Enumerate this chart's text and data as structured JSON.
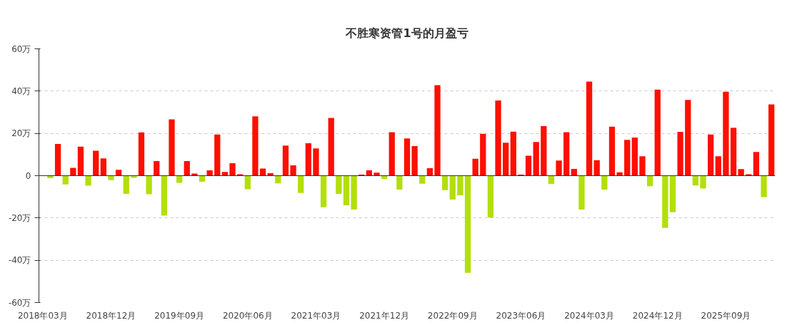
{
  "chart_data": {
    "type": "bar",
    "title": "不胜寒资管1号的月盈亏",
    "categories": [
      "2018年03月",
      null,
      null,
      null,
      null,
      null,
      null,
      null,
      null,
      "2018年12月",
      null,
      null,
      null,
      null,
      null,
      null,
      null,
      null,
      "2019年09月",
      null,
      null,
      null,
      null,
      null,
      null,
      null,
      null,
      "2020年06月",
      null,
      null,
      null,
      null,
      null,
      null,
      null,
      null,
      "2021年03月",
      null,
      null,
      null,
      null,
      null,
      null,
      null,
      null,
      "2021年12月",
      null,
      null,
      null,
      null,
      null,
      null,
      null,
      null,
      "2022年09月",
      null,
      null,
      null,
      null,
      null,
      null,
      null,
      null,
      "2023年06月",
      null,
      null,
      null,
      null,
      null,
      null,
      null,
      null,
      "2024年03月",
      null,
      null,
      null,
      null,
      null,
      null,
      null,
      null,
      "2024年12月",
      null,
      null,
      null,
      null,
      null,
      null,
      null,
      null,
      "2025年09月",
      null,
      null,
      null,
      null,
      null,
      null
    ],
    "values": [
      null,
      -1.2,
      15.0,
      -4.1,
      3.7,
      13.7,
      -4.7,
      11.8,
      8.2,
      -2.1,
      2.8,
      -8.6,
      -1.0,
      20.5,
      -8.8,
      6.9,
      -18.9,
      26.6,
      -3.4,
      6.9,
      1.0,
      -2.9,
      2.5,
      19.5,
      1.8,
      5.9,
      0.7,
      -6.4,
      28.1,
      3.4,
      1.2,
      -3.6,
      14.2,
      4.9,
      -8.2,
      15.3,
      12.9,
      -14.9,
      27.3,
      -8.6,
      -14.0,
      -16.0,
      0.5,
      2.5,
      1.4,
      -1.5,
      20.6,
      -6.6,
      17.6,
      14.0,
      -3.8,
      3.5,
      42.8,
      -6.8,
      -11.3,
      -9.3,
      -45.9,
      8.0,
      19.8,
      -19.8,
      35.6,
      15.6,
      20.8,
      0.5,
      9.4,
      15.9,
      23.4,
      -4.0,
      7.2,
      20.6,
      3.2,
      -16.0,
      44.5,
      7.3,
      -6.6,
      23.2,
      1.6,
      16.9,
      18.0,
      9.2,
      -5.0,
      40.7,
      -24.7,
      -17.3,
      20.7,
      35.8,
      -4.6,
      -6.1,
      19.5,
      9.2,
      39.7,
      22.7,
      3.1,
      0.7,
      11.2,
      -10.1,
      33.7
    ],
    "colors": [
      "#ff0f00",
      "#b3df0a",
      "#ff0f00",
      "#b3df0a",
      "#ff0f00",
      "#ff0f00",
      "#b3df0a",
      "#ff0f00",
      "#ff0f00",
      "#b3df0a",
      "#ff0f00",
      "#b3df0a",
      "#b3df0a",
      "#ff0f00",
      "#b3df0a",
      "#ff0f00",
      "#b3df0a",
      "#ff0f00",
      "#b3df0a",
      "#ff0f00",
      "#ff0f00",
      "#b3df0a",
      "#ff0f00",
      "#ff0f00",
      "#ff0f00",
      "#ff0f00",
      "#ff0f00",
      "#b3df0a",
      "#ff0f00",
      "#ff0f00",
      "#ff0f00",
      "#b3df0a",
      "#ff0f00",
      "#ff0f00",
      "#b3df0a",
      "#ff0f00",
      "#ff0f00",
      "#b3df0a",
      "#ff0f00",
      "#b3df0a",
      "#b3df0a",
      "#b3df0a",
      "#ff0f00",
      "#ff0f00",
      "#ff0f00",
      "#b3df0a",
      "#ff0f00",
      "#b3df0a",
      "#ff0f00",
      "#ff0f00",
      "#b3df0a",
      "#ff0f00",
      "#ff0f00",
      "#b3df0a",
      "#b3df0a",
      "#b3df0a",
      "#b3df0a",
      "#ff0f00",
      "#ff0f00",
      "#b3df0a",
      "#ff0f00",
      "#ff0f00",
      "#ff0f00",
      "#ff0f00",
      "#ff0f00",
      "#ff0f00",
      "#ff0f00",
      "#b3df0a",
      "#ff0f00",
      "#ff0f00",
      "#ff0f00",
      "#b3df0a",
      "#ff0f00",
      "#ff0f00",
      "#b3df0a",
      "#ff0f00",
      "#ff0f00",
      "#ff0f00",
      "#ff0f00",
      "#ff0f00",
      "#b3df0a",
      "#ff0f00",
      "#b3df0a",
      "#b3df0a",
      "#ff0f00",
      "#ff0f00",
      "#b3df0a",
      "#b3df0a",
      "#ff0f00",
      "#ff0f00",
      "#ff0f00",
      "#ff0f00",
      "#ff0f00",
      "#ff0f00",
      "#ff0f00",
      "#b3df0a",
      "#ff0f00"
    ],
    "ylim": [
      -60,
      60
    ],
    "yticks": [
      {
        "value": -60,
        "label": "-60万"
      },
      {
        "value": -40,
        "label": "-40万"
      },
      {
        "value": -20,
        "label": "-20万"
      },
      0,
      {
        "value": 20,
        "label": "20万"
      },
      {
        "value": 40,
        "label": "40万"
      },
      {
        "value": 60,
        "label": "60万"
      }
    ],
    "grid": "y"
  }
}
